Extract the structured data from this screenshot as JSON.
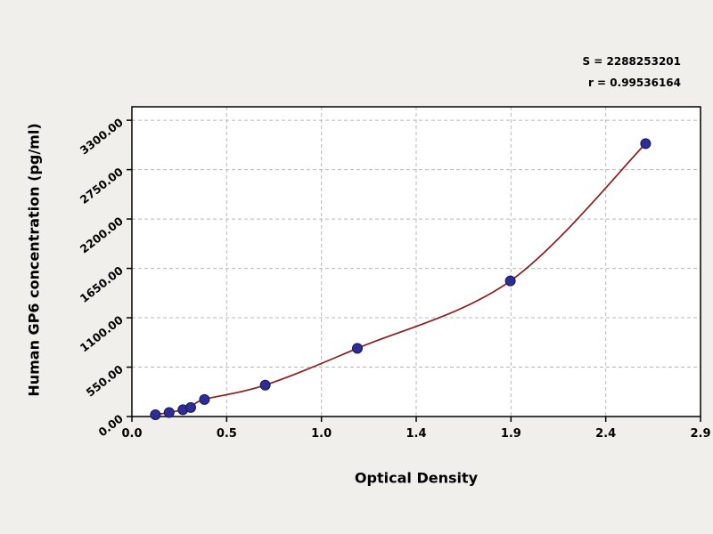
{
  "annotations": {
    "s_label": "S = 2288253201",
    "r_label": "r = 0.99536164"
  },
  "colors": {
    "background": "#f1efeb",
    "plot_background": "#ffffff",
    "grid": "#b8b8b8",
    "axis": "#000000",
    "point_fill": "#2d2d96",
    "point_stroke": "#15155e",
    "curve": "#8b1e1e"
  },
  "chart_data": {
    "type": "scatter",
    "title": "",
    "xlabel": "Optical Density",
    "ylabel": "Human GP6 concentration (pg/ml)",
    "x_ticks": [
      "0.0",
      "0.5",
      "1.0",
      "1.4",
      "1.9",
      "2.4",
      "2.9"
    ],
    "xlim": [
      0,
      2.9
    ],
    "y_ticks": [
      "0.00",
      "550.00",
      "1100.00",
      "1650.00",
      "2200.00",
      "2750.00",
      "3300.00"
    ],
    "y_tick_values": [
      0,
      550,
      1100,
      1650,
      2200,
      2750,
      3300
    ],
    "ylim": [
      0,
      3450
    ],
    "grid": "dashed",
    "legend": "none",
    "series": [
      {
        "name": "standard-points",
        "type": "scatter",
        "x": [
          0.12,
          0.19,
          0.26,
          0.3,
          0.37,
          0.68,
          1.15,
          1.93,
          2.62
        ],
        "y": [
          20,
          45,
          75,
          100,
          190,
          350,
          760,
          1510,
          3040
        ]
      },
      {
        "name": "fit-curve",
        "type": "line",
        "description": "smooth regression curve through the standard points"
      }
    ]
  }
}
